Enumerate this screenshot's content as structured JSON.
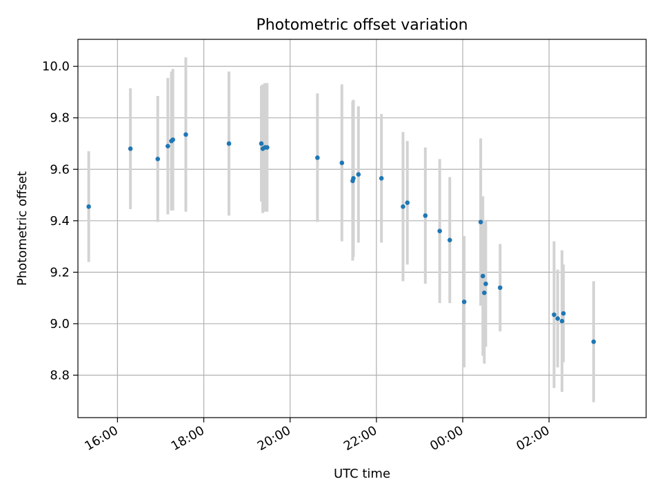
{
  "chart_data": {
    "type": "scatter",
    "title": "Photometric offset variation",
    "xlabel": "UTC time",
    "ylabel": "Photometric offset",
    "xlim": [
      "15:05",
      "28:15"
    ],
    "ylim": [
      8.635,
      10.105
    ],
    "grid": true,
    "x_ticks": [
      {
        "t": "16:00",
        "label": "16:00"
      },
      {
        "t": "18:00",
        "label": "18:00"
      },
      {
        "t": "20:00",
        "label": "20:00"
      },
      {
        "t": "22:00",
        "label": "22:00"
      },
      {
        "t": "24:00",
        "label": "00:00"
      },
      {
        "t": "26:00",
        "label": "02:00"
      }
    ],
    "y_ticks": [
      8.8,
      9.0,
      9.2,
      9.4,
      9.6,
      9.8,
      10.0
    ],
    "y_tick_labels": [
      "8.8",
      "9.0",
      "9.2",
      "9.4",
      "9.6",
      "9.8",
      "10.0"
    ],
    "points": [
      {
        "t": "15:20",
        "y": 9.455,
        "err": 0.215
      },
      {
        "t": "16:18",
        "y": 9.68,
        "err": 0.235
      },
      {
        "t": "16:56",
        "y": 9.64,
        "err": 0.245
      },
      {
        "t": "17:10",
        "y": 9.69,
        "err": 0.265
      },
      {
        "t": "17:15",
        "y": 9.71,
        "err": 0.27
      },
      {
        "t": "17:17",
        "y": 9.715,
        "err": 0.275
      },
      {
        "t": "17:35",
        "y": 9.735,
        "err": 0.3
      },
      {
        "t": "18:35",
        "y": 9.7,
        "err": 0.28
      },
      {
        "t": "19:20",
        "y": 9.7,
        "err": 0.225
      },
      {
        "t": "19:22",
        "y": 9.68,
        "err": 0.25
      },
      {
        "t": "19:25",
        "y": 9.685,
        "err": 0.25
      },
      {
        "t": "19:28",
        "y": 9.685,
        "err": 0.25
      },
      {
        "t": "20:38",
        "y": 9.645,
        "err": 0.25
      },
      {
        "t": "21:12",
        "y": 9.625,
        "err": 0.305
      },
      {
        "t": "21:27",
        "y": 9.555,
        "err": 0.31
      },
      {
        "t": "21:28",
        "y": 9.565,
        "err": 0.305
      },
      {
        "t": "21:35",
        "y": 9.58,
        "err": 0.265
      },
      {
        "t": "22:07",
        "y": 9.565,
        "err": 0.25
      },
      {
        "t": "22:37",
        "y": 9.455,
        "err": 0.29
      },
      {
        "t": "22:43",
        "y": 9.47,
        "err": 0.24
      },
      {
        "t": "23:08",
        "y": 9.42,
        "err": 0.265
      },
      {
        "t": "23:28",
        "y": 9.36,
        "err": 0.28
      },
      {
        "t": "23:42",
        "y": 9.325,
        "err": 0.245
      },
      {
        "t": "24:02",
        "y": 9.085,
        "err": 0.255
      },
      {
        "t": "24:25",
        "y": 9.395,
        "err": 0.325
      },
      {
        "t": "24:28",
        "y": 9.185,
        "err": 0.31
      },
      {
        "t": "24:30",
        "y": 9.12,
        "err": 0.275
      },
      {
        "t": "24:32",
        "y": 9.155,
        "err": 0.245
      },
      {
        "t": "24:52",
        "y": 9.14,
        "err": 0.17
      },
      {
        "t": "26:07",
        "y": 9.035,
        "err": 0.285
      },
      {
        "t": "26:12",
        "y": 9.02,
        "err": 0.19
      },
      {
        "t": "26:18",
        "y": 9.01,
        "err": 0.275
      },
      {
        "t": "26:20",
        "y": 9.04,
        "err": 0.19
      },
      {
        "t": "27:02",
        "y": 8.93,
        "err": 0.235
      }
    ],
    "colors": {
      "point": "#1f77b4",
      "errorbar": "#d3d3d3",
      "grid": "#b0b0b0",
      "axes": "#000000"
    }
  }
}
